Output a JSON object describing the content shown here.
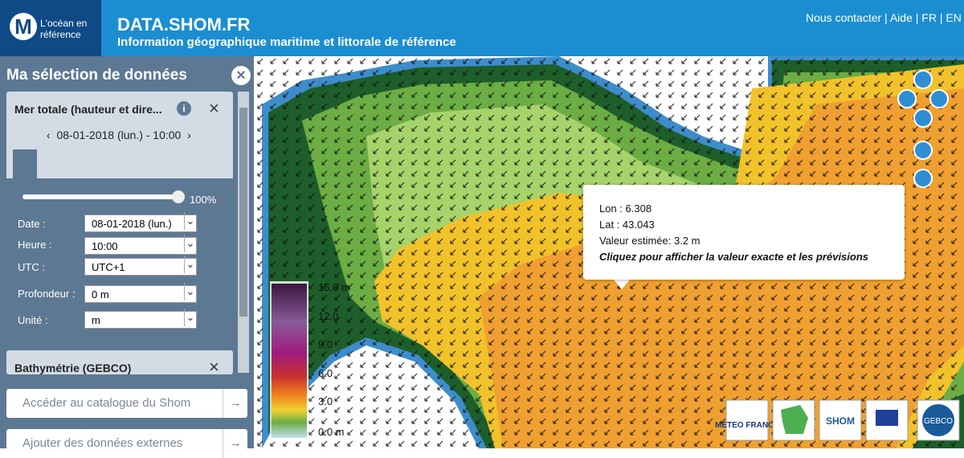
{
  "header": {
    "logo_text": "L'océan en référence",
    "site": "DATA.SHOM.FR",
    "subtitle": "Information géographique maritime et littorale de référence",
    "links": [
      "Nous contacter",
      "Aide",
      "FR",
      "EN"
    ]
  },
  "sidebar": {
    "title": "Ma sélection de données",
    "layer": {
      "name": "Mer totale (hauteur et dire...",
      "datetime": "08-01-2018 (lun.) - 10:00",
      "opacity": "100%",
      "fields": [
        {
          "label": "Date :",
          "value": "08-01-2018 (lun.)"
        },
        {
          "label": "Heure :",
          "value": "10:00"
        },
        {
          "label": "UTC :",
          "value": "UTC+1"
        },
        {
          "label": "Profondeur :",
          "value": "0 m"
        },
        {
          "label": "Unité :",
          "value": "m"
        }
      ]
    },
    "layer2": {
      "name": "Bathymétrie (GEBCO)"
    },
    "buttons": [
      "Accéder au catalogue du Shom",
      "Ajouter des données externes"
    ]
  },
  "map": {
    "legend": [
      "15.0 m",
      "12.0",
      "9.0",
      "6.0",
      "3.0",
      "0.0 m"
    ],
    "tooltip": {
      "lon": "Lon : 6.308",
      "lat": "Lat : 43.043",
      "value": "Valeur estimée: 3.2 m",
      "action": "Cliquez pour afficher la valeur exacte et les prévisions"
    },
    "logos": [
      "METEO FRANCE",
      "SHOM",
      "GEBCO"
    ]
  }
}
